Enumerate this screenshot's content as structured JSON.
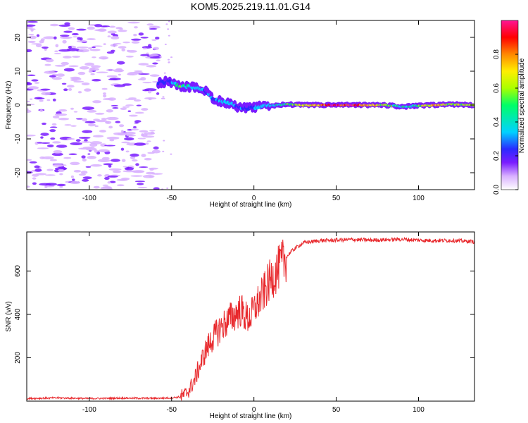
{
  "title": "KOM5.2025.219.11.01.G14",
  "chart_data": [
    {
      "type": "heatmap",
      "name": "spectrogram",
      "xlabel": "Height of straight line (km)",
      "ylabel": "Frequency (Hz)",
      "xlim": [
        -138,
        134
      ],
      "ylim": [
        -25,
        25
      ],
      "xticks": [
        -100,
        -50,
        0,
        50,
        100
      ],
      "yticks": [
        -20,
        -10,
        0,
        10,
        20
      ],
      "colorbar": {
        "label": "Normalized spectral amplitude",
        "range": [
          0.0,
          1.0
        ],
        "ticks": [
          0.0,
          0.2,
          0.4,
          0.6,
          0.8
        ],
        "tick_labels": [
          "0.0",
          "0.2",
          "0.4",
          "0.6",
          "0.8"
        ],
        "colors": [
          "#ffffff",
          "#d8b0ff",
          "#7a1cff",
          "#2a2aff",
          "#00d2ff",
          "#00ff66",
          "#aaff00",
          "#ffee00",
          "#ff8800",
          "#ff0000",
          "#ff1493"
        ]
      },
      "ridge": [
        {
          "x": -58,
          "f": 6.5,
          "a": 0.25
        },
        {
          "x": -52,
          "f": 7.0,
          "a": 0.3
        },
        {
          "x": -45,
          "f": 5.5,
          "a": 0.55
        },
        {
          "x": -40,
          "f": 5.5,
          "a": 0.45
        },
        {
          "x": -35,
          "f": 5.0,
          "a": 0.4
        },
        {
          "x": -30,
          "f": 4.5,
          "a": 0.35
        },
        {
          "x": -25,
          "f": 2.0,
          "a": 0.3
        },
        {
          "x": -20,
          "f": 1.0,
          "a": 0.4
        },
        {
          "x": -15,
          "f": 0.5,
          "a": 0.45
        },
        {
          "x": -10,
          "f": -0.5,
          "a": 0.3
        },
        {
          "x": -5,
          "f": -1.0,
          "a": 0.3
        },
        {
          "x": 0,
          "f": -0.8,
          "a": 0.35
        },
        {
          "x": 5,
          "f": -0.3,
          "a": 0.45
        },
        {
          "x": 10,
          "f": -0.2,
          "a": 0.4
        },
        {
          "x": 20,
          "f": 0.2,
          "a": 0.55
        },
        {
          "x": 30,
          "f": 0.0,
          "a": 0.65
        },
        {
          "x": 40,
          "f": 0.0,
          "a": 0.85
        },
        {
          "x": 50,
          "f": 0.0,
          "a": 0.95
        },
        {
          "x": 60,
          "f": 0.0,
          "a": 0.9
        },
        {
          "x": 70,
          "f": 0.0,
          "a": 0.8
        },
        {
          "x": 80,
          "f": 0.0,
          "a": 0.6
        },
        {
          "x": 90,
          "f": -0.5,
          "a": 0.5
        },
        {
          "x": 100,
          "f": -0.2,
          "a": 0.55
        },
        {
          "x": 110,
          "f": 0.0,
          "a": 0.75
        },
        {
          "x": 120,
          "f": 0.2,
          "a": 0.65
        },
        {
          "x": 134,
          "f": 0.0,
          "a": 0.6
        }
      ]
    },
    {
      "type": "line",
      "name": "snr",
      "xlabel": "Height of straight line (km)",
      "ylabel": "SNR (v/v)",
      "xlim": [
        -138,
        134
      ],
      "ylim": [
        0,
        780
      ],
      "xticks": [
        -100,
        -50,
        0,
        50,
        100
      ],
      "yticks": [
        200,
        400,
        600
      ],
      "color": "#e8282c",
      "series": [
        {
          "name": "SNR",
          "x": [
            -138,
            -120,
            -100,
            -80,
            -60,
            -50,
            -45,
            -42,
            -40,
            -38,
            -36,
            -34,
            -32,
            -30,
            -28,
            -26,
            -24,
            -22,
            -20,
            -18,
            -16,
            -14,
            -12,
            -10,
            -8,
            -6,
            -4,
            -2,
            0,
            2,
            4,
            6,
            8,
            10,
            12,
            14,
            16,
            18,
            20,
            22,
            25,
            28,
            30,
            35,
            40,
            50,
            60,
            70,
            80,
            90,
            100,
            110,
            120,
            134
          ],
          "y": [
            12,
            15,
            12,
            14,
            13,
            15,
            20,
            30,
            45,
            70,
            100,
            140,
            180,
            220,
            250,
            280,
            300,
            320,
            340,
            355,
            370,
            385,
            395,
            410,
            420,
            400,
            380,
            390,
            420,
            450,
            470,
            500,
            530,
            560,
            580,
            600,
            625,
            645,
            665,
            685,
            705,
            720,
            730,
            735,
            740,
            742,
            745,
            742,
            744,
            746,
            742,
            740,
            741,
            735
          ]
        }
      ]
    }
  ]
}
